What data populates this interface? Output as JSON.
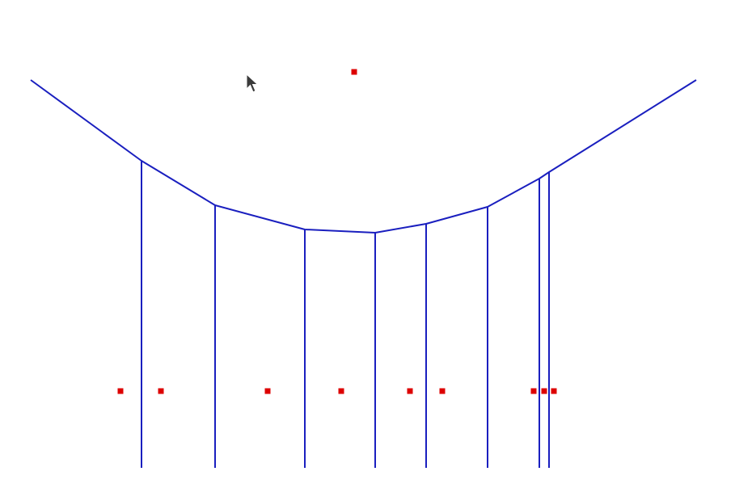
{
  "diagram": {
    "colors": {
      "background": "#ffffff",
      "line": "#1a1fbf",
      "point": "#dd0000",
      "cursor_fill": "#3a3a3a",
      "cursor_outline": "#ffffff"
    },
    "cursor_icon": "arrow-pointer-icon"
  }
}
